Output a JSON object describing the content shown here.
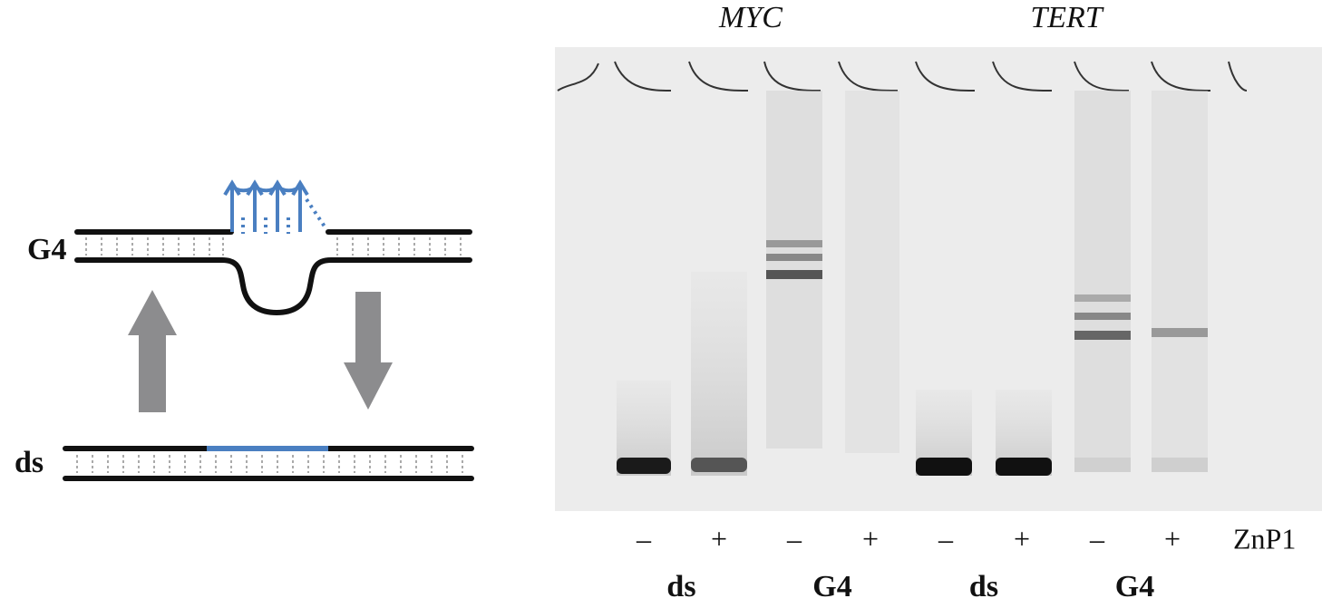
{
  "diagram": {
    "g4_label": "G4",
    "ds_label": "ds"
  },
  "gel": {
    "genes": [
      "MYC",
      "TERT"
    ],
    "lanes": [
      "–",
      "+",
      "–",
      "+",
      "–",
      "+",
      "–",
      "+"
    ],
    "treatment": "ZnP1",
    "groups": [
      "ds",
      "G4",
      "ds",
      "G4"
    ]
  }
}
